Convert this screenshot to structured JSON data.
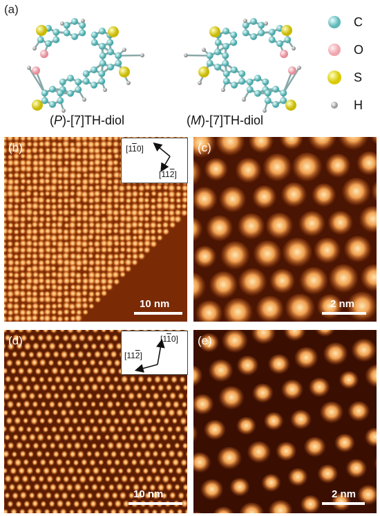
{
  "panel_a": {
    "label": "(a)",
    "molecule_left": {
      "pre": "(",
      "italic": "P",
      "post": ")-[7]TH-diol"
    },
    "molecule_right": {
      "pre": "(",
      "italic": "M",
      "post": ")-[7]TH-diol"
    },
    "legend": [
      {
        "symbol": "C",
        "color": "#5fb8b8",
        "icon": "carbon-atom-icon"
      },
      {
        "symbol": "O",
        "color": "#f0a5ae",
        "icon": "oxygen-atom-icon"
      },
      {
        "symbol": "S",
        "color": "#e3d400",
        "icon": "sulfur-atom-icon"
      },
      {
        "symbol": "H",
        "color": "#b5b5b5",
        "icon": "hydrogen-atom-icon"
      }
    ]
  },
  "panels": [
    {
      "id": "b",
      "label": "(b)",
      "scalebar": "10 nm",
      "inset": {
        "dir1": {
          "pre": "[1",
          "bar": "1",
          "post": "0]"
        },
        "dir2": {
          "pre": "[11",
          "bar": "2",
          "post": "]"
        }
      }
    },
    {
      "id": "c",
      "label": "(c)",
      "scalebar": "2 nm"
    },
    {
      "id": "d",
      "label": "(d)",
      "scalebar": "10 nm",
      "inset": {
        "dir1": {
          "pre": "[1",
          "bar": "1",
          "post": "0]"
        },
        "dir2": {
          "pre": "[11",
          "bar": "2",
          "post": "]"
        }
      }
    },
    {
      "id": "e",
      "label": "(e)",
      "scalebar": "2 nm"
    }
  ],
  "colors": {
    "stm_dark": "#2a0800",
    "stm_mid": "#b44a0a",
    "stm_bright": "#ffe6b0",
    "bond": "#8aa8a8"
  }
}
